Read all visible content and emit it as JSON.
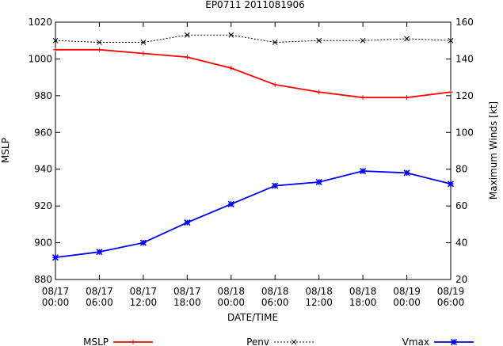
{
  "chart_data": {
    "type": "line",
    "title": "EP0711 2011081906",
    "xlabel": "DATE/TIME",
    "ylabel": "MSLP",
    "y2label": "Maximum Winds [kt]",
    "ylim": [
      880,
      1020
    ],
    "y2lim": [
      20,
      160
    ],
    "yticks": [
      880,
      900,
      920,
      940,
      960,
      980,
      1000,
      1020
    ],
    "y2ticks": [
      20,
      40,
      60,
      80,
      100,
      120,
      140,
      160
    ],
    "categories": [
      [
        "08/17",
        "00:00"
      ],
      [
        "08/17",
        "06:00"
      ],
      [
        "08/17",
        "12:00"
      ],
      [
        "08/17",
        "18:00"
      ],
      [
        "08/18",
        "00:00"
      ],
      [
        "08/18",
        "06:00"
      ],
      [
        "08/18",
        "12:00"
      ],
      [
        "08/18",
        "18:00"
      ],
      [
        "08/19",
        "00:00"
      ],
      [
        "08/19",
        "06:00"
      ]
    ],
    "grid": false,
    "legend_position": "bottom",
    "series": [
      {
        "name": "MSLP",
        "axis": "left",
        "color": "#ff0000",
        "marker": "plus",
        "line": "solid",
        "values": [
          1005,
          1005,
          1003,
          1001,
          995,
          986,
          982,
          979,
          979,
          982
        ]
      },
      {
        "name": "Penv",
        "axis": "left",
        "color": "#000000",
        "marker": "cross",
        "line": "dotted",
        "values": [
          1010,
          1009,
          1009,
          1013,
          1013,
          1009,
          1010,
          1010,
          1011,
          1010
        ]
      },
      {
        "name": "Vmax",
        "axis": "right",
        "color": "#0000ff",
        "marker": "star",
        "line": "solid",
        "values": [
          32,
          35,
          40,
          51,
          61,
          71,
          73,
          79,
          78,
          72
        ]
      }
    ]
  }
}
